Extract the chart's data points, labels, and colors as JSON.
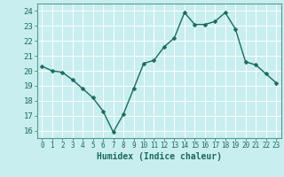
{
  "x": [
    0,
    1,
    2,
    3,
    4,
    5,
    6,
    7,
    8,
    9,
    10,
    11,
    12,
    13,
    14,
    15,
    16,
    17,
    18,
    19,
    20,
    21,
    22,
    23
  ],
  "y": [
    20.3,
    20.0,
    19.9,
    19.4,
    18.8,
    18.2,
    17.3,
    15.9,
    17.1,
    18.8,
    20.5,
    20.7,
    21.6,
    22.2,
    23.9,
    23.1,
    23.1,
    23.3,
    23.9,
    22.8,
    20.6,
    20.4,
    19.8,
    19.2
  ],
  "line_color": "#1a6b5a",
  "marker": "D",
  "marker_size": 2.5,
  "bg_color": "#c8eef0",
  "grid_color": "#ffffff",
  "xlabel": "Humidex (Indice chaleur)",
  "ylim": [
    15.5,
    24.5
  ],
  "yticks": [
    16,
    17,
    18,
    19,
    20,
    21,
    22,
    23,
    24
  ],
  "xticks": [
    0,
    1,
    2,
    3,
    4,
    5,
    6,
    7,
    8,
    9,
    10,
    11,
    12,
    13,
    14,
    15,
    16,
    17,
    18,
    19,
    20,
    21,
    22,
    23
  ],
  "tick_color": "#1a6b5a",
  "label_color": "#1a6b5a",
  "axis_color": "#5a9a8a",
  "xlabel_fontsize": 7,
  "ytick_fontsize": 6.5,
  "xtick_fontsize": 5.5,
  "linewidth": 1.0
}
